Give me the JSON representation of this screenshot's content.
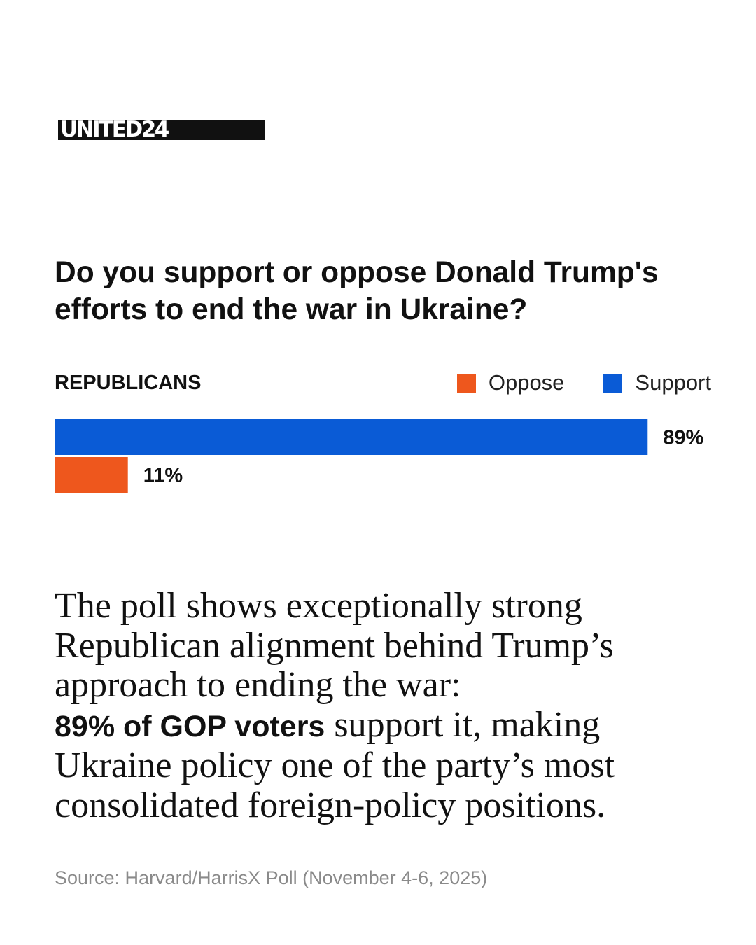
{
  "brand": {
    "logo_text": "UNITED24"
  },
  "colors": {
    "support": "#0a5bd6",
    "oppose": "#ee571d",
    "text": "#111111",
    "source_text": "#8a8a8a"
  },
  "chart_data": {
    "type": "bar",
    "orientation": "horizontal",
    "title": "Do you support or oppose Donald Trump's efforts to end the war in Ukraine?",
    "group": "REPUBLICANS",
    "legend": [
      "Oppose",
      "Support"
    ],
    "legend_position": "top-right",
    "unit": "%",
    "series": [
      {
        "name": "Support",
        "value": 89,
        "label": "89%",
        "color": "#0a5bd6"
      },
      {
        "name": "Oppose",
        "value": 11,
        "label": "11%",
        "color": "#ee571d"
      }
    ],
    "xlim": [
      0,
      100
    ],
    "grid": false
  },
  "body": {
    "intro": "The poll shows exceptionally strong Republican alignment behind Trump’s approach to ending the war:",
    "highlight": "89% of GOP voters",
    "rest": " support it, making Ukraine policy one of the party’s most consolidated foreign-policy positions."
  },
  "source": "Source: Harvard/HarrisX Poll (November 4-6, 2025)"
}
